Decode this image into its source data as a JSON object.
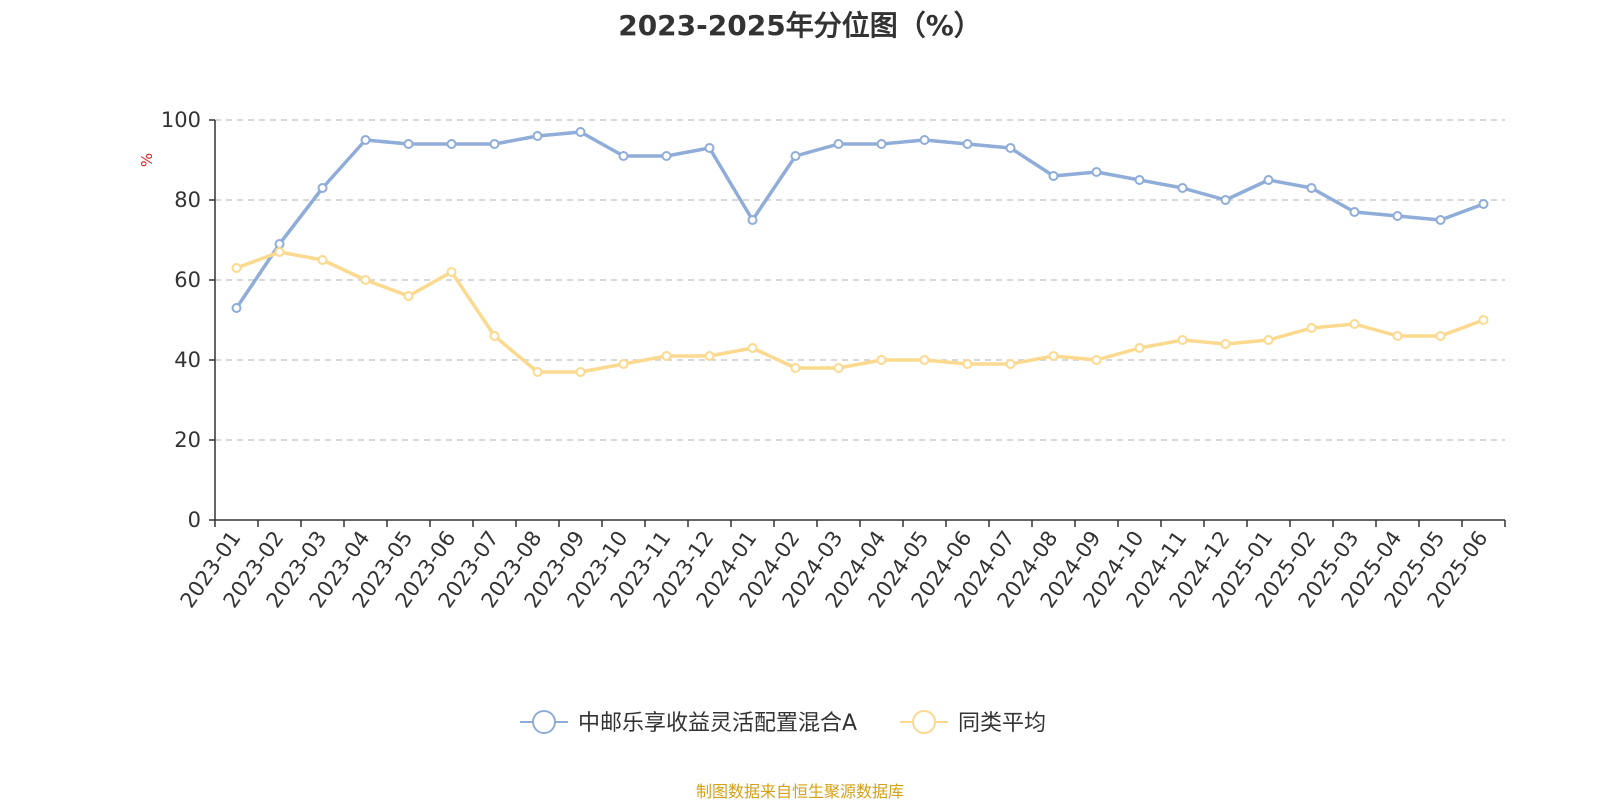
{
  "chart_data": {
    "type": "line",
    "title": "2023-2025年分位图（%）",
    "ylabel": "%",
    "ylim": [
      0,
      100
    ],
    "yticks": [
      0,
      20,
      40,
      60,
      80,
      100
    ],
    "grid": true,
    "legend_position": "bottom",
    "categories": [
      "2023-01",
      "2023-02",
      "2023-03",
      "2023-04",
      "2023-05",
      "2023-06",
      "2023-07",
      "2023-08",
      "2023-09",
      "2023-10",
      "2023-11",
      "2023-12",
      "2024-01",
      "2024-02",
      "2024-03",
      "2024-04",
      "2024-05",
      "2024-06",
      "2024-07",
      "2024-08",
      "2024-09",
      "2024-10",
      "2024-11",
      "2024-12",
      "2025-01",
      "2025-02",
      "2025-03",
      "2025-04",
      "2025-05",
      "2025-06"
    ],
    "series": [
      {
        "name": "中邮乐享收益灵活配置混合A",
        "color": "#8fadd8",
        "values": [
          53,
          69,
          83,
          95,
          94,
          94,
          94,
          96,
          97,
          91,
          91,
          93,
          75,
          91,
          94,
          94,
          95,
          94,
          93,
          86,
          87,
          85,
          83,
          80,
          85,
          83,
          77,
          76,
          75,
          79
        ]
      },
      {
        "name": "同类平均",
        "color": "#fbd98f",
        "values": [
          63,
          67,
          65,
          60,
          56,
          62,
          46,
          37,
          37,
          39,
          41,
          41,
          43,
          38,
          38,
          40,
          40,
          39,
          39,
          41,
          40,
          43,
          45,
          44,
          45,
          48,
          49,
          46,
          46,
          50
        ]
      }
    ]
  },
  "source": "制图数据来自恒生聚源数据库"
}
